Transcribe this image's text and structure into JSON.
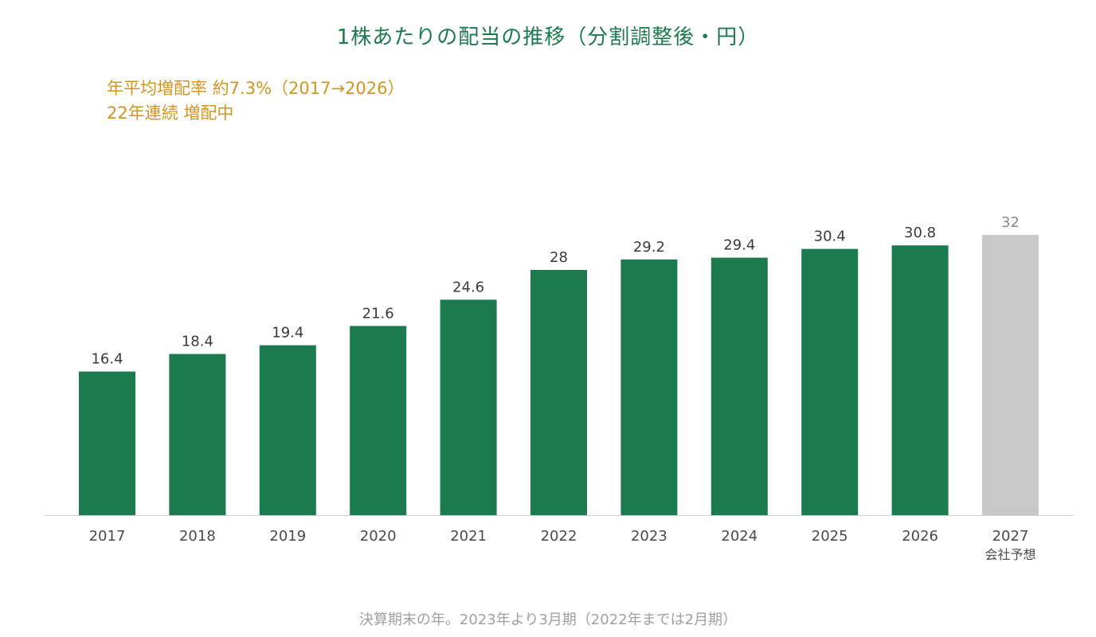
{
  "chart_data": {
    "type": "bar",
    "title": "1株あたりの配当の推移（分割調整後・円）",
    "annotations": [
      "年平均増配率 約7.3%（2017→2026）",
      "22年連続 増配中"
    ],
    "categories": [
      "2017",
      "2018",
      "2019",
      "2020",
      "2021",
      "2022",
      "2023",
      "2024",
      "2025",
      "2026",
      "2027"
    ],
    "category_sublabels": [
      "",
      "",
      "",
      "",
      "",
      "",
      "",
      "",
      "",
      "",
      "会社予想"
    ],
    "values": [
      16.4,
      18.4,
      19.4,
      21.6,
      24.6,
      28,
      29.2,
      29.4,
      30.4,
      30.8,
      32
    ],
    "value_labels": [
      "16.4",
      "18.4",
      "19.4",
      "21.6",
      "24.6",
      "28",
      "29.2",
      "29.4",
      "30.4",
      "30.8",
      "32"
    ],
    "forecast": [
      false,
      false,
      false,
      false,
      false,
      false,
      false,
      false,
      false,
      false,
      true
    ],
    "xlabel": "",
    "ylabel": "",
    "ylim": [
      0,
      35.5
    ],
    "grid": false,
    "footnote": "決算期末の年。2023年より3月期（2022年までは2月期）",
    "colors": {
      "actual": "#1b7a4e",
      "forecast": "#c8c8c8",
      "title": "#1b7a4e",
      "annotation": "#d4951e",
      "footnote": "#a0a0a0",
      "axis": "#d0d0d0"
    }
  }
}
